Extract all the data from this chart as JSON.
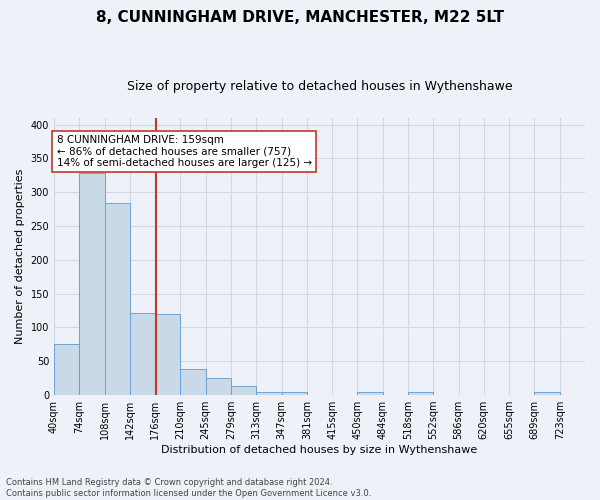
{
  "title": "8, CUNNINGHAM DRIVE, MANCHESTER, M22 5LT",
  "subtitle": "Size of property relative to detached houses in Wythenshawe",
  "xlabel": "Distribution of detached houses by size in Wythenshawe",
  "ylabel": "Number of detached properties",
  "footer_line1": "Contains HM Land Registry data © Crown copyright and database right 2024.",
  "footer_line2": "Contains public sector information licensed under the Open Government Licence v3.0.",
  "bin_labels": [
    "40sqm",
    "74sqm",
    "108sqm",
    "142sqm",
    "176sqm",
    "210sqm",
    "245sqm",
    "279sqm",
    "313sqm",
    "347sqm",
    "381sqm",
    "415sqm",
    "450sqm",
    "484sqm",
    "518sqm",
    "552sqm",
    "586sqm",
    "620sqm",
    "655sqm",
    "689sqm",
    "723sqm"
  ],
  "bin_values": [
    75,
    328,
    284,
    122,
    120,
    38,
    25,
    13,
    4,
    4,
    0,
    0,
    5,
    0,
    4,
    0,
    0,
    0,
    0,
    4,
    0
  ],
  "bar_color": "#c9d9e8",
  "bar_edge_color": "#5b9bd5",
  "grid_color": "#d0d8e8",
  "vline_index": 4.05,
  "vline_color": "#c0392b",
  "annotation_text": "8 CUNNINGHAM DRIVE: 159sqm\n← 86% of detached houses are smaller (757)\n14% of semi-detached houses are larger (125) →",
  "annotation_box_color": "white",
  "annotation_box_edge": "#c0392b",
  "ylim": [
    0,
    410
  ],
  "yticks": [
    0,
    50,
    100,
    150,
    200,
    250,
    300,
    350,
    400
  ],
  "background_color": "#eef2f8",
  "title_fontsize": 11,
  "subtitle_fontsize": 9,
  "ylabel_fontsize": 8,
  "xlabel_fontsize": 8,
  "tick_fontsize": 7,
  "footer_fontsize": 6,
  "annot_fontsize": 7.5
}
